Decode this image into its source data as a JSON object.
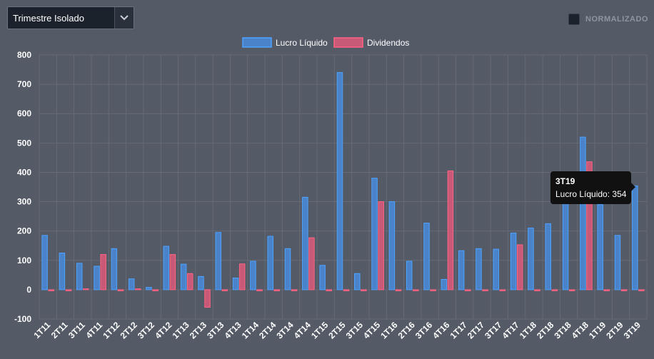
{
  "controls": {
    "period_select": "Trimestre Isolado",
    "normalize_label": "NORMALIZADO"
  },
  "tooltip": {
    "title": "3T19",
    "line": "Lucro Líquido: 354"
  },
  "colors": {
    "lucro_fill": "#4a83c9",
    "lucro_stroke": "#4da3ff",
    "dividendos_fill": "#c85a77",
    "dividendos_stroke": "#ff6384",
    "grid": "#666b75",
    "tick": "#ffffff"
  },
  "chart_data": {
    "type": "bar",
    "title": "",
    "xlabel": "",
    "ylabel": "",
    "ylim": [
      -100,
      800
    ],
    "yticks": [
      -100,
      0,
      100,
      200,
      300,
      400,
      500,
      600,
      700,
      800
    ],
    "grid": true,
    "legend": "top-center",
    "categories": [
      "1T11",
      "2T11",
      "3T11",
      "4T11",
      "1T12",
      "2T12",
      "3T12",
      "4T12",
      "1T13",
      "2T13",
      "3T13",
      "4T13",
      "1T14",
      "2T14",
      "3T14",
      "4T14",
      "1T15",
      "2T15",
      "3T15",
      "4T15",
      "1T16",
      "2T16",
      "3T16",
      "4T16",
      "1T17",
      "2T17",
      "3T17",
      "4T17",
      "1T18",
      "2T18",
      "3T18",
      "4T18",
      "1T19",
      "2T19",
      "3T19"
    ],
    "series": [
      {
        "name": "Lucro Líquido",
        "values": [
          185,
          125,
          90,
          80,
          140,
          37,
          8,
          148,
          87,
          45,
          195,
          40,
          97,
          182,
          140,
          315,
          83,
          740,
          55,
          380,
          300,
          97,
          227,
          35,
          133,
          140,
          138,
          193,
          210,
          225,
          350,
          520,
          290,
          185,
          354
        ]
      },
      {
        "name": "Dividendos",
        "values": [
          -4,
          -4,
          3,
          120,
          -4,
          3,
          -4,
          120,
          55,
          -60,
          -4,
          88,
          -4,
          -4,
          -4,
          177,
          -4,
          -4,
          -4,
          300,
          -4,
          -4,
          -4,
          405,
          -4,
          -4,
          -4,
          153,
          -4,
          -4,
          -4,
          436,
          -4,
          -4,
          -4
        ]
      }
    ]
  }
}
